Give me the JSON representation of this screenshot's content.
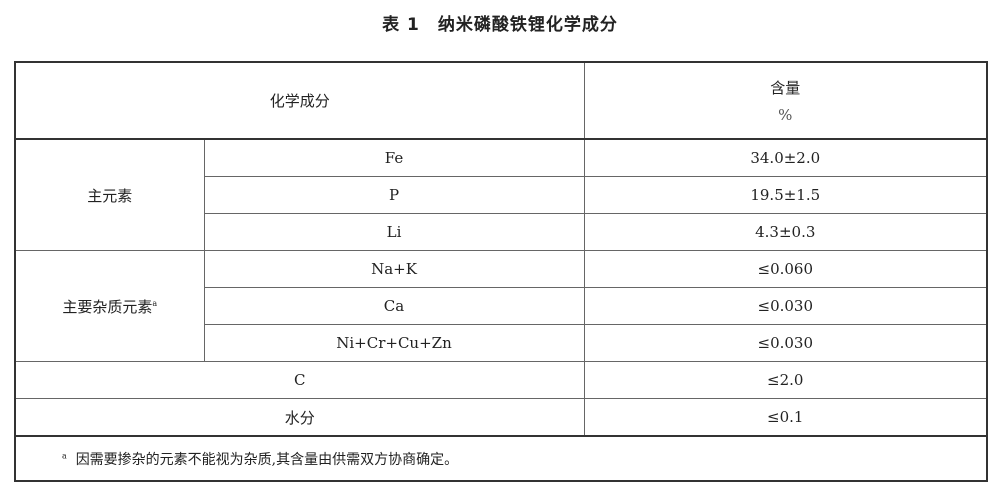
{
  "title": {
    "number": "表 1",
    "text": "纳米磷酸铁锂化学成分"
  },
  "header": {
    "component": "化学成分",
    "content": "含量",
    "unit": "%"
  },
  "groups": [
    {
      "label": "主元素",
      "note_mark": "",
      "rows": [
        {
          "element": "Fe",
          "value": "34.0±2.0"
        },
        {
          "element": "P",
          "value": "19.5±1.5"
        },
        {
          "element": "Li",
          "value": "4.3±0.3"
        }
      ]
    },
    {
      "label": "主要杂质元素",
      "note_mark": "a",
      "rows": [
        {
          "element": "Na+K",
          "value": "≤0.060"
        },
        {
          "element": "Ca",
          "value": "≤0.030"
        },
        {
          "element": "Ni+Cr+Cu+Zn",
          "value": "≤0.030"
        }
      ]
    }
  ],
  "single_rows": [
    {
      "element": "C",
      "value": "≤2.0"
    },
    {
      "element": "水分",
      "value": "≤0.1"
    }
  ],
  "footnote": {
    "mark": "a",
    "text": "因需要掺杂的元素不能视为杂质,其含量由供需双方协商确定。"
  }
}
